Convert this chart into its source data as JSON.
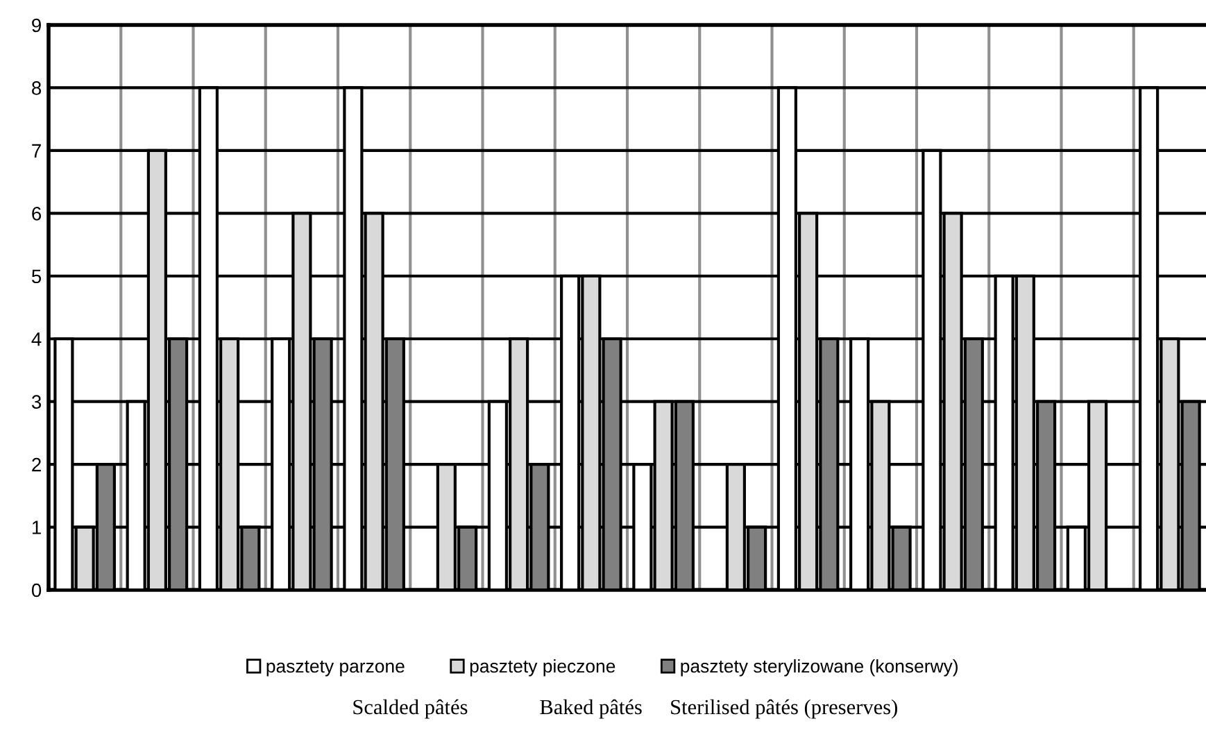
{
  "chart_data": {
    "type": "bar",
    "categories": [
      null,
      null,
      null,
      null,
      null,
      null,
      null,
      null,
      null,
      null,
      null,
      null,
      null,
      null,
      null,
      null
    ],
    "series": [
      {
        "name": "pasztety parzone",
        "color": "#ffffff",
        "values": [
          4,
          3,
          8,
          4,
          8,
          null,
          3,
          5,
          2,
          null,
          8,
          4,
          7,
          5,
          1,
          8
        ]
      },
      {
        "name": "pasztety pieczone",
        "color": "#d9d9d9",
        "values": [
          1,
          7,
          4,
          6,
          6,
          2,
          4,
          5,
          3,
          2,
          6,
          3,
          6,
          5,
          3,
          4
        ]
      },
      {
        "name": "pasztety sterylizowane (konserwy)",
        "color": "#808080",
        "values": [
          2,
          4,
          1,
          4,
          4,
          1,
          2,
          4,
          3,
          1,
          4,
          1,
          4,
          3,
          null,
          3
        ]
      }
    ],
    "ylim": [
      0,
      9
    ],
    "yticks": [
      0,
      1,
      2,
      3,
      4,
      5,
      6,
      7,
      8,
      9
    ],
    "grid": true,
    "legend": "bottom",
    "annotations": [
      "Scalded pâtés",
      "Baked pâtés",
      "Sterilised pâtés (preserves)"
    ]
  }
}
